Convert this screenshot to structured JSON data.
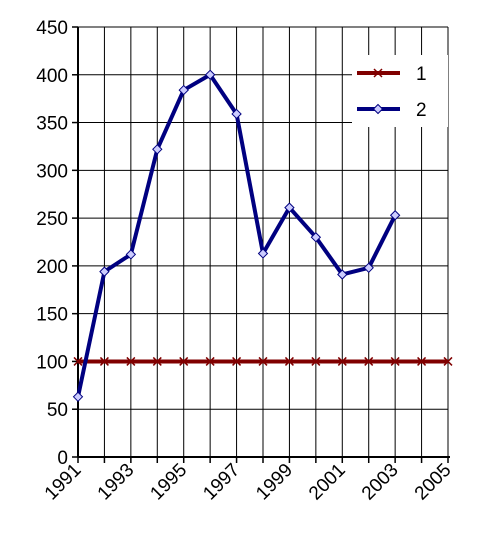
{
  "chart_data": {
    "type": "line",
    "x": [
      1991,
      1992,
      1993,
      1994,
      1995,
      1996,
      1997,
      1998,
      1999,
      2000,
      2001,
      2002,
      2003,
      2004,
      2005
    ],
    "series": [
      {
        "name": "1",
        "color": "#800000",
        "marker": "x",
        "values": [
          100,
          100,
          100,
          100,
          100,
          100,
          100,
          100,
          100,
          100,
          100,
          100,
          100,
          100,
          100
        ]
      },
      {
        "name": "2",
        "color": "#000080",
        "marker": "diamond",
        "values": [
          63,
          194,
          212,
          322,
          384,
          400,
          359,
          213,
          261,
          230,
          191,
          198,
          253,
          null,
          null
        ]
      }
    ],
    "xlim": [
      1991,
      2005
    ],
    "xticks": [
      1991,
      1993,
      1995,
      1997,
      1999,
      2001,
      2003,
      2005
    ],
    "xminorticks": [
      1992,
      1994,
      1996,
      1998,
      2000,
      2002,
      2004
    ],
    "ylim": [
      0,
      450
    ],
    "yticks": [
      0,
      50,
      100,
      150,
      200,
      250,
      300,
      350,
      400,
      450
    ],
    "grid": true,
    "legend": "upper right"
  }
}
